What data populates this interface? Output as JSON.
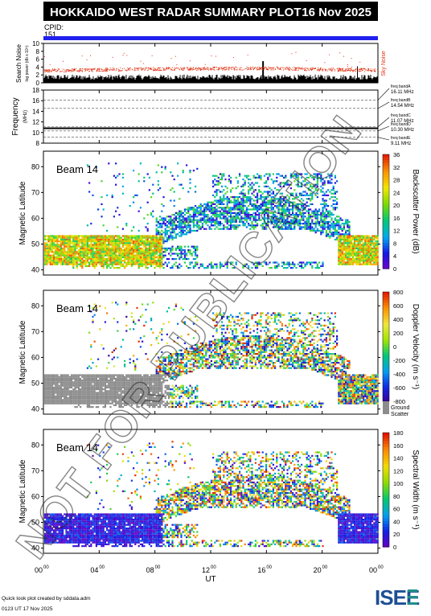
{
  "header": {
    "title": "HOKKAIDO WEST RADAR SUMMARY PLOT",
    "date": "16 Nov 2025",
    "cpid_label": "CPID:",
    "cpid_value": "151"
  },
  "noise_panel": {
    "ylabel": "Search Noise",
    "ylabel_unit": "log power (db x 10⁴)",
    "side_label": "Sky Noise",
    "ticks": [
      "0",
      "2",
      "4",
      "6",
      "8",
      "10"
    ]
  },
  "frequency_panel": {
    "ylabel": "Frequency",
    "ylabel_unit": "(MHz)",
    "ticks": [
      "8",
      "10",
      "12",
      "14",
      "16",
      "18"
    ],
    "bands": [
      {
        "name": "freq bandA",
        "value": "16.11 MHz"
      },
      {
        "name": "freq bandB",
        "value": "14.54 MHz"
      },
      {
        "name": "freq bandC",
        "value": "11.07 MHz"
      },
      {
        "name": "freq bandD",
        "value": "10.30 MHz"
      },
      {
        "name": "freq bandE",
        "value": "9.11 MHz"
      }
    ]
  },
  "panels": [
    {
      "beam_label": "Beam 14",
      "ylabel": "Magnetic Latitude",
      "cbar_label": "Backscatter Power (dB)",
      "cbar_ticks": [
        "0",
        "4",
        "8",
        "12",
        "16",
        "20",
        "24",
        "28",
        "32",
        "36"
      ],
      "scheme": "power"
    },
    {
      "beam_label": "Beam 14",
      "ylabel": "Magnetic Latitude",
      "cbar_label": "Doppler Velocity (m s⁻¹)",
      "cbar_ticks": [
        "-800",
        "-600",
        "-400",
        "-200",
        "0",
        "200",
        "400",
        "600",
        "800"
      ],
      "scheme": "velocity",
      "ground_label": "Ground",
      "ground_label2": "Scatter"
    },
    {
      "beam_label": "Beam 14",
      "ylabel": "Magnetic Latitude",
      "cbar_label": "Spectral Width (m s⁻¹)",
      "cbar_ticks": [
        "0",
        "20",
        "40",
        "60",
        "80",
        "100",
        "120",
        "140",
        "160",
        "180"
      ],
      "scheme": "width"
    }
  ],
  "lat_ticks": [
    "40",
    "50",
    "60",
    "70",
    "80"
  ],
  "time_ticks": [
    "00",
    "04",
    "08",
    "12",
    "16",
    "20",
    "00"
  ],
  "time_ticks_sup": "00",
  "xlabel": "UT",
  "footer": {
    "credit": "Quick look plot created by sddata.adm",
    "timestamp": "0123 UT 17 Nov 2025",
    "logo": "ISEE"
  },
  "watermark": "NOT FOR PUBLICATION",
  "colors": {
    "cpid_bar": "#2020ee",
    "noise_red": "#e03010",
    "sky_noise_label": "#e03010",
    "ground_scatter": "#8c8c8c",
    "logo_teal": "#1f8f88",
    "logo_blue": "#1d4f95"
  },
  "chart_data": [
    {
      "type": "line",
      "title": "Search Noise",
      "xlabel": "",
      "ylabel": "Search Noise",
      "xlim": [
        "00:00",
        "24:00"
      ],
      "ylim": [
        0,
        10
      ],
      "series": [
        {
          "name": "Sky Noise",
          "x": [
            "00:00",
            "04:00",
            "08:00",
            "12:00",
            "16:00",
            "20:00",
            "24:00"
          ],
          "values": [
            3.2,
            3.4,
            3.6,
            3.7,
            3.8,
            3.5,
            3.3
          ]
        }
      ]
    },
    {
      "type": "line",
      "title": "Frequency",
      "xlabel": "",
      "ylabel": "Frequency (MHz)",
      "xlim": [
        "00:00",
        "24:00"
      ],
      "ylim": [
        8,
        18
      ],
      "series": [
        {
          "name": "",
          "x": [
            "00:00",
            "24:00"
          ],
          "values": [
            10.8,
            10.8
          ]
        }
      ]
    },
    {
      "type": "heatmap",
      "title": "Backscatter Power (dB)",
      "xlabel": "UT",
      "ylabel": "Magnetic Latitude",
      "xlim": [
        "00:00",
        "24:00"
      ],
      "ylim": [
        38,
        86
      ],
      "zlim": [
        0,
        36
      ]
    },
    {
      "type": "heatmap",
      "title": "Doppler Velocity (m s⁻¹)",
      "xlabel": "UT",
      "ylabel": "Magnetic Latitude",
      "xlim": [
        "00:00",
        "24:00"
      ],
      "ylim": [
        38,
        86
      ],
      "zlim": [
        -800,
        800
      ]
    },
    {
      "type": "heatmap",
      "title": "Spectral Width (m s⁻¹)",
      "xlabel": "UT",
      "ylabel": "Magnetic Latitude",
      "xlim": [
        "00:00",
        "24:00"
      ],
      "ylim": [
        38,
        86
      ],
      "zlim": [
        0,
        180
      ]
    }
  ]
}
